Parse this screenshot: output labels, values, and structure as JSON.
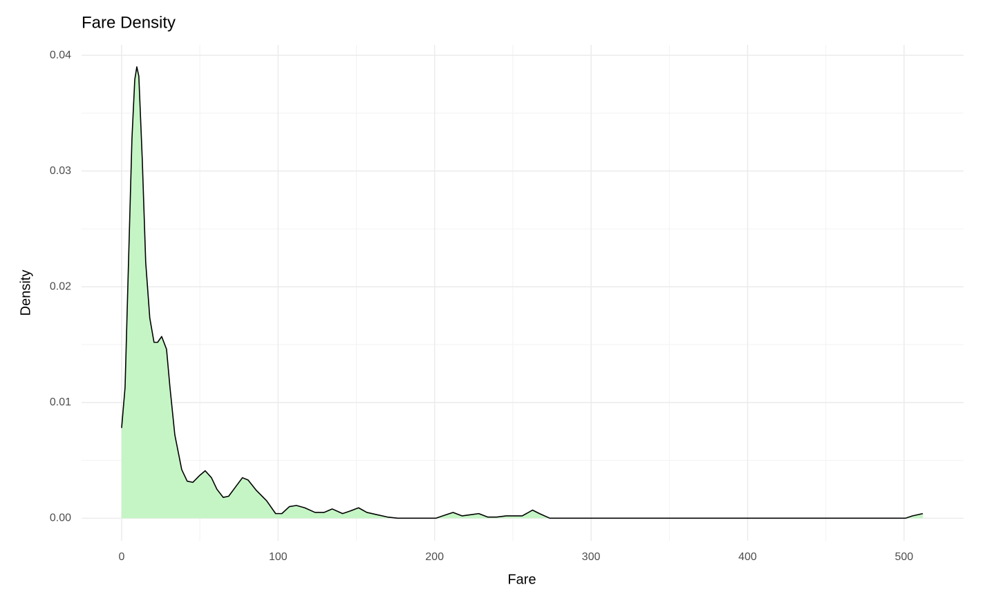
{
  "chart_data": {
    "type": "area",
    "title": "Fare Density",
    "x_label": "Fare",
    "y_label": "Density",
    "x": [
      0,
      2.2,
      4.4,
      6.6,
      8.4,
      9.7,
      11,
      13.2,
      15.4,
      18,
      20.7,
      23,
      25.6,
      28.7,
      30.9,
      34,
      38.4,
      41.9,
      45.5,
      49.9,
      53.4,
      57.4,
      60.9,
      64.9,
      68.4,
      72.8,
      77.2,
      80.8,
      86.1,
      92.7,
      98.4,
      102.4,
      107.2,
      111.7,
      117,
      123.6,
      129.3,
      134.6,
      141.2,
      145.6,
      151.4,
      156.7,
      163.3,
      169.9,
      176.5,
      200.8,
      207.4,
      211.8,
      217.6,
      222.9,
      228.2,
      233.9,
      239.6,
      245.8,
      251.5,
      256,
      262.6,
      267,
      273.6,
      500.9,
      505.3,
      512
    ],
    "values": [
      0.0078,
      0.0113,
      0.0221,
      0.0328,
      0.0379,
      0.039,
      0.0382,
      0.031,
      0.0221,
      0.0173,
      0.0152,
      0.0152,
      0.0157,
      0.0146,
      0.0113,
      0.0072,
      0.0042,
      0.0032,
      0.0031,
      0.0037,
      0.0041,
      0.0035,
      0.0025,
      0.0018,
      0.0019,
      0.0027,
      0.0035,
      0.0033,
      0.0024,
      0.0015,
      0.0004,
      0.0004,
      0.001,
      0.0011,
      0.0009,
      0.0005,
      0.0005,
      0.0008,
      0.0004,
      0.0006,
      0.0009,
      0.0005,
      0.0003,
      0.0001,
      0,
      0,
      0.0003,
      0.0005,
      0.0002,
      0.0003,
      0.0004,
      0.0001,
      0.0001,
      0.0002,
      0.0002,
      0.0002,
      0.0007,
      0.0004,
      0,
      0,
      0.0002,
      0.0004
    ],
    "fill_color": "#c5f5c5",
    "line_color": "#000000",
    "xlim": [
      -25.6,
      538
    ],
    "ylim": [
      -0.00195,
      0.0409
    ],
    "xticks": [
      0,
      100,
      200,
      300,
      400,
      500
    ],
    "yticks": [
      {
        "value": 0,
        "label": "0.00"
      },
      0.01,
      0.02,
      0.03,
      0.04
    ],
    "xminorticks": [
      50,
      150,
      250,
      350,
      450
    ],
    "yminorticks": [
      0.005,
      0.015,
      0.025,
      0.035
    ],
    "grid": true
  }
}
